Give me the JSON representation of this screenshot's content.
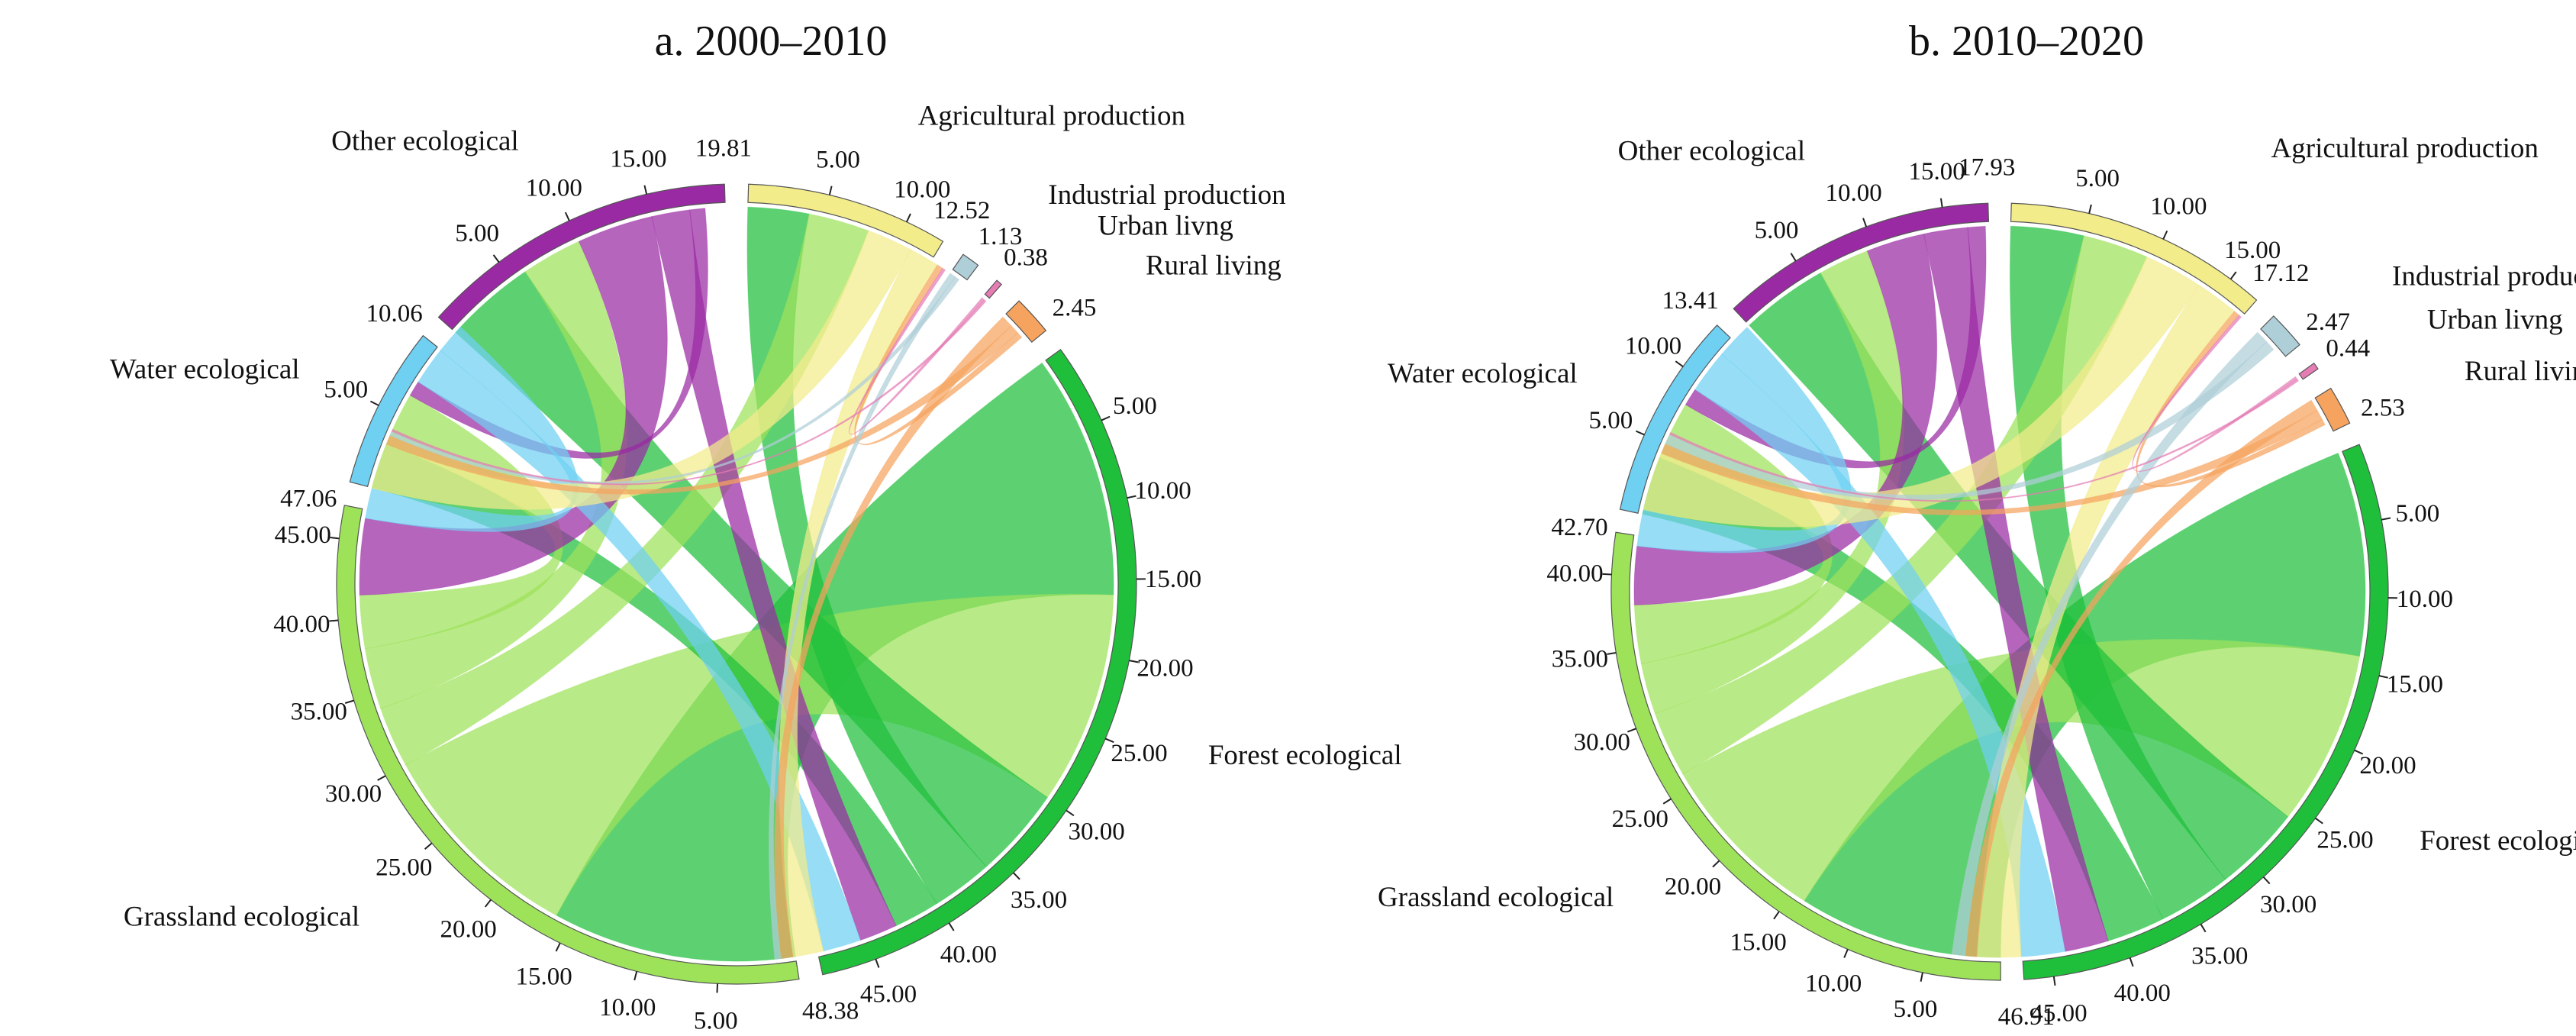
{
  "colors": {
    "Agricultural production": "#f2ec8a",
    "Industrial production": "#aecfd8",
    "Urban livng": "#e57cb4",
    "Rural living": "#f5a35e",
    "Forest ecological": "#1fbf3c",
    "Grassland ecological": "#9ee25a",
    "Water ecological": "#6fd0f2",
    "Other ecological": "#9a2aa3"
  },
  "chart_data": [
    {
      "type": "chord",
      "title": "a. 2000–2010",
      "segments": [
        {
          "name": "Agricultural production",
          "label": "Agricultural production",
          "total": 12.52,
          "end_label": "12.52",
          "ticks": [
            "5.00",
            "10.00"
          ]
        },
        {
          "name": "Industrial production",
          "label": "Industrial production",
          "total": 1.13,
          "end_label": "1.13",
          "ticks": []
        },
        {
          "name": "Urban livng",
          "label": "Urban livng",
          "total": 0.38,
          "end_label": "0.38",
          "ticks": []
        },
        {
          "name": "Rural living",
          "label": "Rural living",
          "total": 2.45,
          "end_label": "2.45",
          "ticks": []
        },
        {
          "name": "Forest ecological",
          "label": "Forest ecological",
          "total": 48.38,
          "end_label": "48.38",
          "ticks": [
            "5.00",
            "10.00",
            "15.00",
            "20.00",
            "25.00",
            "30.00",
            "35.00",
            "40.00",
            "45.00"
          ]
        },
        {
          "name": "Grassland ecological",
          "label": "Grassland ecological",
          "total": 47.06,
          "end_label": "47.06",
          "ticks": [
            "5.00",
            "10.00",
            "15.00",
            "20.00",
            "25.00",
            "30.00",
            "35.00",
            "40.00",
            "45.00"
          ]
        },
        {
          "name": "Water ecological",
          "label": "Water ecological",
          "total": 10.06,
          "end_label": "10.06",
          "ticks": [
            "5.00"
          ]
        },
        {
          "name": "Other ecological",
          "label": "Other ecological",
          "total": 19.81,
          "end_label": "19.81",
          "ticks": [
            "5.00",
            "10.00",
            "15.00"
          ]
        }
      ],
      "flows": [
        {
          "from": "Forest ecological",
          "to": "Grassland ecological",
          "value": 16.0
        },
        {
          "from": "Grassland ecological",
          "to": "Forest ecological",
          "value": 14.0
        },
        {
          "from": "Forest ecological",
          "to": "Other ecological",
          "value": 6.0
        },
        {
          "from": "Forest ecological",
          "to": "Agricultural production",
          "value": 4.0
        },
        {
          "from": "Forest ecological",
          "to": "Water ecological",
          "value": 3.0
        },
        {
          "from": "Grassland ecological",
          "to": "Agricultural production",
          "value": 4.0
        },
        {
          "from": "Grassland ecological",
          "to": "Other ecological",
          "value": 4.0
        },
        {
          "from": "Grassland ecological",
          "to": "Water ecological",
          "value": 3.5
        },
        {
          "from": "Other ecological",
          "to": "Grassland ecological",
          "value": 5.0
        },
        {
          "from": "Other ecological",
          "to": "Forest ecological",
          "value": 2.5
        },
        {
          "from": "Other ecological",
          "to": "Water ecological",
          "value": 1.0
        },
        {
          "from": "Water ecological",
          "to": "Forest ecological",
          "value": 2.5
        },
        {
          "from": "Water ecological",
          "to": "Grassland ecological",
          "value": 2.0
        },
        {
          "from": "Agricultural production",
          "to": "Grassland ecological",
          "value": 3.0
        },
        {
          "from": "Agricultural production",
          "to": "Forest ecological",
          "value": 2.0
        },
        {
          "from": "Rural living",
          "to": "Forest ecological",
          "value": 0.8
        },
        {
          "from": "Rural living",
          "to": "Grassland ecological",
          "value": 0.6
        },
        {
          "from": "Rural living",
          "to": "Agricultural production",
          "value": 0.4
        },
        {
          "from": "Industrial production",
          "to": "Forest ecological",
          "value": 0.4
        },
        {
          "from": "Industrial production",
          "to": "Grassland ecological",
          "value": 0.3
        },
        {
          "from": "Urban livng",
          "to": "Agricultural production",
          "value": 0.2
        },
        {
          "from": "Urban livng",
          "to": "Grassland ecological",
          "value": 0.15
        }
      ]
    },
    {
      "type": "chord",
      "title": "b. 2010–2020",
      "segments": [
        {
          "name": "Agricultural production",
          "label": "Agricultural production",
          "total": 17.12,
          "end_label": "17.12",
          "ticks": [
            "5.00",
            "10.00",
            "15.00"
          ]
        },
        {
          "name": "Industrial production",
          "label": "Industrial production",
          "total": 2.47,
          "end_label": "2.47",
          "ticks": []
        },
        {
          "name": "Urban livng",
          "label": "Urban livng",
          "total": 0.44,
          "end_label": "0.44",
          "ticks": []
        },
        {
          "name": "Rural living",
          "label": "Rural living",
          "total": 2.53,
          "end_label": "2.53",
          "ticks": []
        },
        {
          "name": "Forest ecological",
          "label": "Forest ecological",
          "total": 46.91,
          "end_label": "46.91",
          "ticks": [
            "5.00",
            "10.00",
            "15.00",
            "20.00",
            "25.00",
            "30.00",
            "35.00",
            "40.00",
            "45.00"
          ]
        },
        {
          "name": "Grassland ecological",
          "label": "Grassland ecological",
          "total": 42.7,
          "end_label": "42.70",
          "ticks": [
            "5.00",
            "10.00",
            "15.00",
            "20.00",
            "25.00",
            "30.00",
            "35.00",
            "40.00"
          ]
        },
        {
          "name": "Water ecological",
          "label": "Water ecological",
          "total": 13.41,
          "end_label": "13.41",
          "ticks": [
            "5.00",
            "10.00"
          ]
        },
        {
          "name": "Other ecological",
          "label": "Other ecological",
          "total": 17.93,
          "end_label": "17.93",
          "ticks": [
            "5.00",
            "10.00",
            "15.00"
          ]
        }
      ],
      "flows": [
        {
          "from": "Forest ecological",
          "to": "Grassland ecological",
          "value": 14.0
        },
        {
          "from": "Grassland ecological",
          "to": "Forest ecological",
          "value": 12.0
        },
        {
          "from": "Forest ecological",
          "to": "Other ecological",
          "value": 6.0
        },
        {
          "from": "Forest ecological",
          "to": "Agricultural production",
          "value": 5.0
        },
        {
          "from": "Forest ecological",
          "to": "Water ecological",
          "value": 4.0
        },
        {
          "from": "Grassland ecological",
          "to": "Agricultural production",
          "value": 4.5
        },
        {
          "from": "Grassland ecological",
          "to": "Other ecological",
          "value": 3.5
        },
        {
          "from": "Grassland ecological",
          "to": "Water ecological",
          "value": 4.0
        },
        {
          "from": "Other ecological",
          "to": "Grassland ecological",
          "value": 4.0
        },
        {
          "from": "Other ecological",
          "to": "Forest ecological",
          "value": 3.0
        },
        {
          "from": "Other ecological",
          "to": "Water ecological",
          "value": 1.2
        },
        {
          "from": "Water ecological",
          "to": "Forest ecological",
          "value": 3.0
        },
        {
          "from": "Water ecological",
          "to": "Grassland ecological",
          "value": 2.5
        },
        {
          "from": "Agricultural production",
          "to": "Grassland ecological",
          "value": 4.0
        },
        {
          "from": "Agricultural production",
          "to": "Forest ecological",
          "value": 3.0
        },
        {
          "from": "Rural living",
          "to": "Forest ecological",
          "value": 0.8
        },
        {
          "from": "Rural living",
          "to": "Grassland ecological",
          "value": 0.7
        },
        {
          "from": "Rural living",
          "to": "Agricultural production",
          "value": 0.4
        },
        {
          "from": "Industrial production",
          "to": "Forest ecological",
          "value": 0.9
        },
        {
          "from": "Industrial production",
          "to": "Grassland ecological",
          "value": 0.7
        },
        {
          "from": "Urban livng",
          "to": "Agricultural production",
          "value": 0.2
        },
        {
          "from": "Urban livng",
          "to": "Grassland ecological",
          "value": 0.15
        }
      ]
    }
  ]
}
